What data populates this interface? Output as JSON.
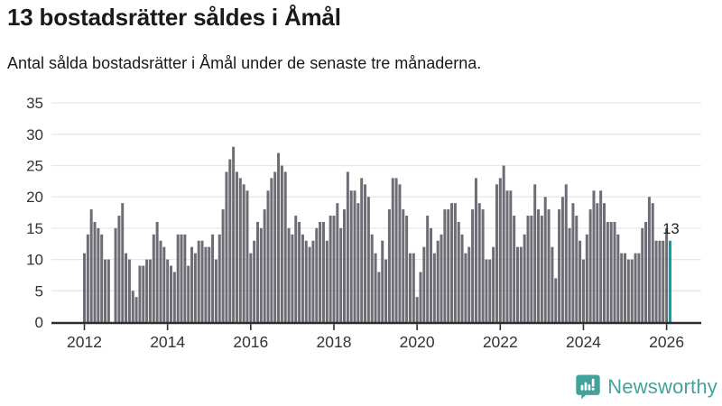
{
  "title": "13 bostadsrätter såldes i Åmål",
  "subtitle": "Antal sålda bostadsrätter i Åmål under de senaste tre månaderna.",
  "logo": {
    "text": "Newsworthy"
  },
  "colors": {
    "bar": "#6d6d75",
    "highlight": "#00a3a6",
    "grid": "#e7e7e7",
    "axis": "#2e2e2e",
    "tick_text": "#333333",
    "annotation_text": "#1c1c1c",
    "brand": "#43a39c"
  },
  "chart_data": {
    "type": "bar",
    "title": "13 bostadsrätter såldes i Åmål",
    "subtitle": "Antal sålda bostadsrätter i Åmål under de senaste tre månaderna.",
    "unit": "sålda bostadsrätter per månad",
    "start_month": "2012-01",
    "end_month": "2026-02",
    "ylim": [
      0,
      35
    ],
    "y_ticks": [
      0,
      5,
      10,
      15,
      20,
      25,
      30,
      35
    ],
    "x_tick_labels": [
      "2012",
      "2014",
      "2016",
      "2018",
      "2020",
      "2022",
      "2024",
      "2026"
    ],
    "x_tick_every_months": 24,
    "grid": true,
    "highlight_last_bar": true,
    "last_value_label": "13",
    "series": [
      {
        "name": "Antal sålda bostadsrätter",
        "values": [
          11,
          14,
          18,
          16,
          15,
          14,
          10,
          10,
          0,
          15,
          17,
          19,
          11,
          10,
          5,
          4,
          9,
          9,
          10,
          10,
          14,
          16,
          13,
          12,
          10,
          9,
          8,
          14,
          14,
          14,
          9,
          12,
          11,
          13,
          13,
          12,
          12,
          14,
          10,
          14,
          18,
          24,
          26,
          28,
          24,
          23,
          22,
          21,
          11,
          13,
          16,
          15,
          18,
          21,
          23,
          24,
          27,
          25,
          24,
          15,
          14,
          17,
          16,
          14,
          13,
          12,
          13,
          15,
          16,
          16,
          13,
          17,
          17,
          19,
          15,
          18,
          24,
          21,
          21,
          19,
          23,
          22,
          20,
          14,
          11,
          8,
          13,
          10,
          18,
          23,
          23,
          22,
          18,
          17,
          11,
          11,
          4,
          8,
          12,
          17,
          15,
          11,
          13,
          14,
          18,
          18,
          19,
          19,
          16,
          14,
          11,
          12,
          18,
          23,
          19,
          18,
          10,
          10,
          12,
          22,
          23,
          25,
          21,
          21,
          17,
          12,
          12,
          14,
          17,
          17,
          22,
          18,
          17,
          20,
          18,
          12,
          7,
          18,
          20,
          22,
          15,
          19,
          17,
          13,
          10,
          14,
          18,
          21,
          19,
          21,
          19,
          16,
          16,
          16,
          14,
          11,
          11,
          10,
          10,
          11,
          11,
          15,
          16,
          20,
          19,
          13,
          13,
          13,
          15,
          13
        ]
      }
    ]
  }
}
